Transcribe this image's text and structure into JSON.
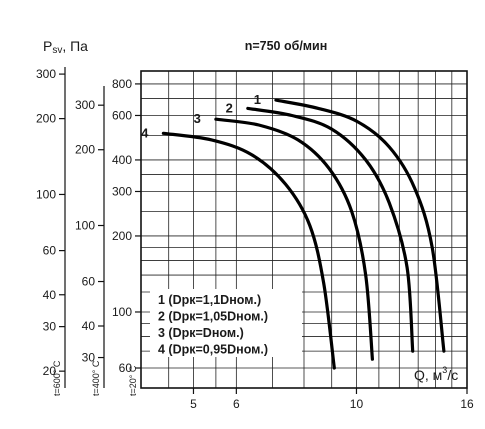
{
  "chart_data": {
    "type": "line",
    "title": "n=750 об/мин",
    "ylabel": "Psv, Па",
    "ylabel_main": "P",
    "ylabel_sub": "sv",
    "ylabel_unit": ", Па",
    "xlabel": "Q, м³/с",
    "xlabel_main": "Q, м",
    "xlabel_sup": "3",
    "xlabel_unit": "/с",
    "x_scale": "log",
    "y_scale": "log",
    "xlim": [
      4,
      16
    ],
    "ylim": [
      50,
      900
    ],
    "x_ticks": [
      "5",
      "6",
      "10",
      "16"
    ],
    "y_axes": [
      {
        "name": "t=600° C",
        "ticks": [
          {
            "label": "300",
            "pa20": 875
          },
          {
            "label": "200",
            "pa20": 583
          },
          {
            "label": "100",
            "pa20": 292
          },
          {
            "label": "60",
            "pa20": 175
          },
          {
            "label": "40",
            "pa20": 117
          },
          {
            "label": "30",
            "pa20": 87.5
          },
          {
            "label": "20",
            "pa20": 58.3
          }
        ]
      },
      {
        "name": "t=400° C",
        "ticks": [
          {
            "label": "300",
            "pa20": 659
          },
          {
            "label": "200",
            "pa20": 439
          },
          {
            "label": "100",
            "pa20": 220
          },
          {
            "label": "60",
            "pa20": 132
          },
          {
            "label": "40",
            "pa20": 88
          },
          {
            "label": "30",
            "pa20": 66
          }
        ]
      },
      {
        "name": "t=20° C",
        "ticks": [
          {
            "label": "800",
            "pa20": 800
          },
          {
            "label": "600",
            "pa20": 600
          },
          {
            "label": "400",
            "pa20": 400
          },
          {
            "label": "300",
            "pa20": 300
          },
          {
            "label": "200",
            "pa20": 200
          },
          {
            "label": "100",
            "pa20": 100
          },
          {
            "label": "60",
            "pa20": 60
          }
        ]
      }
    ],
    "series": [
      {
        "name": "1",
        "legend": "1 (Dрк=1,1Dном.)",
        "points": [
          [
            7.1,
            690
          ],
          [
            8.5,
            640
          ],
          [
            10.0,
            570
          ],
          [
            11.5,
            450
          ],
          [
            12.8,
            310
          ],
          [
            13.8,
            180
          ],
          [
            14.5,
            70
          ]
        ]
      },
      {
        "name": "2",
        "legend": "2 (Dрк=1,05Dном.)",
        "points": [
          [
            6.3,
            640
          ],
          [
            7.6,
            600
          ],
          [
            9.0,
            530
          ],
          [
            10.4,
            400
          ],
          [
            11.5,
            270
          ],
          [
            12.4,
            150
          ],
          [
            12.7,
            70
          ]
        ]
      },
      {
        "name": "3",
        "legend": "3 (Dрк=Dном.)",
        "points": [
          [
            5.5,
            580
          ],
          [
            6.6,
            550
          ],
          [
            7.8,
            480
          ],
          [
            8.9,
            370
          ],
          [
            9.8,
            250
          ],
          [
            10.4,
            140
          ],
          [
            10.7,
            65
          ]
        ]
      },
      {
        "name": "4",
        "legend": "4 (Dрк=0,95Dном.)",
        "points": [
          [
            4.4,
            510
          ],
          [
            5.4,
            480
          ],
          [
            6.4,
            420
          ],
          [
            7.4,
            320
          ],
          [
            8.2,
            220
          ],
          [
            8.7,
            130
          ],
          [
            9.1,
            60
          ]
        ]
      }
    ]
  }
}
